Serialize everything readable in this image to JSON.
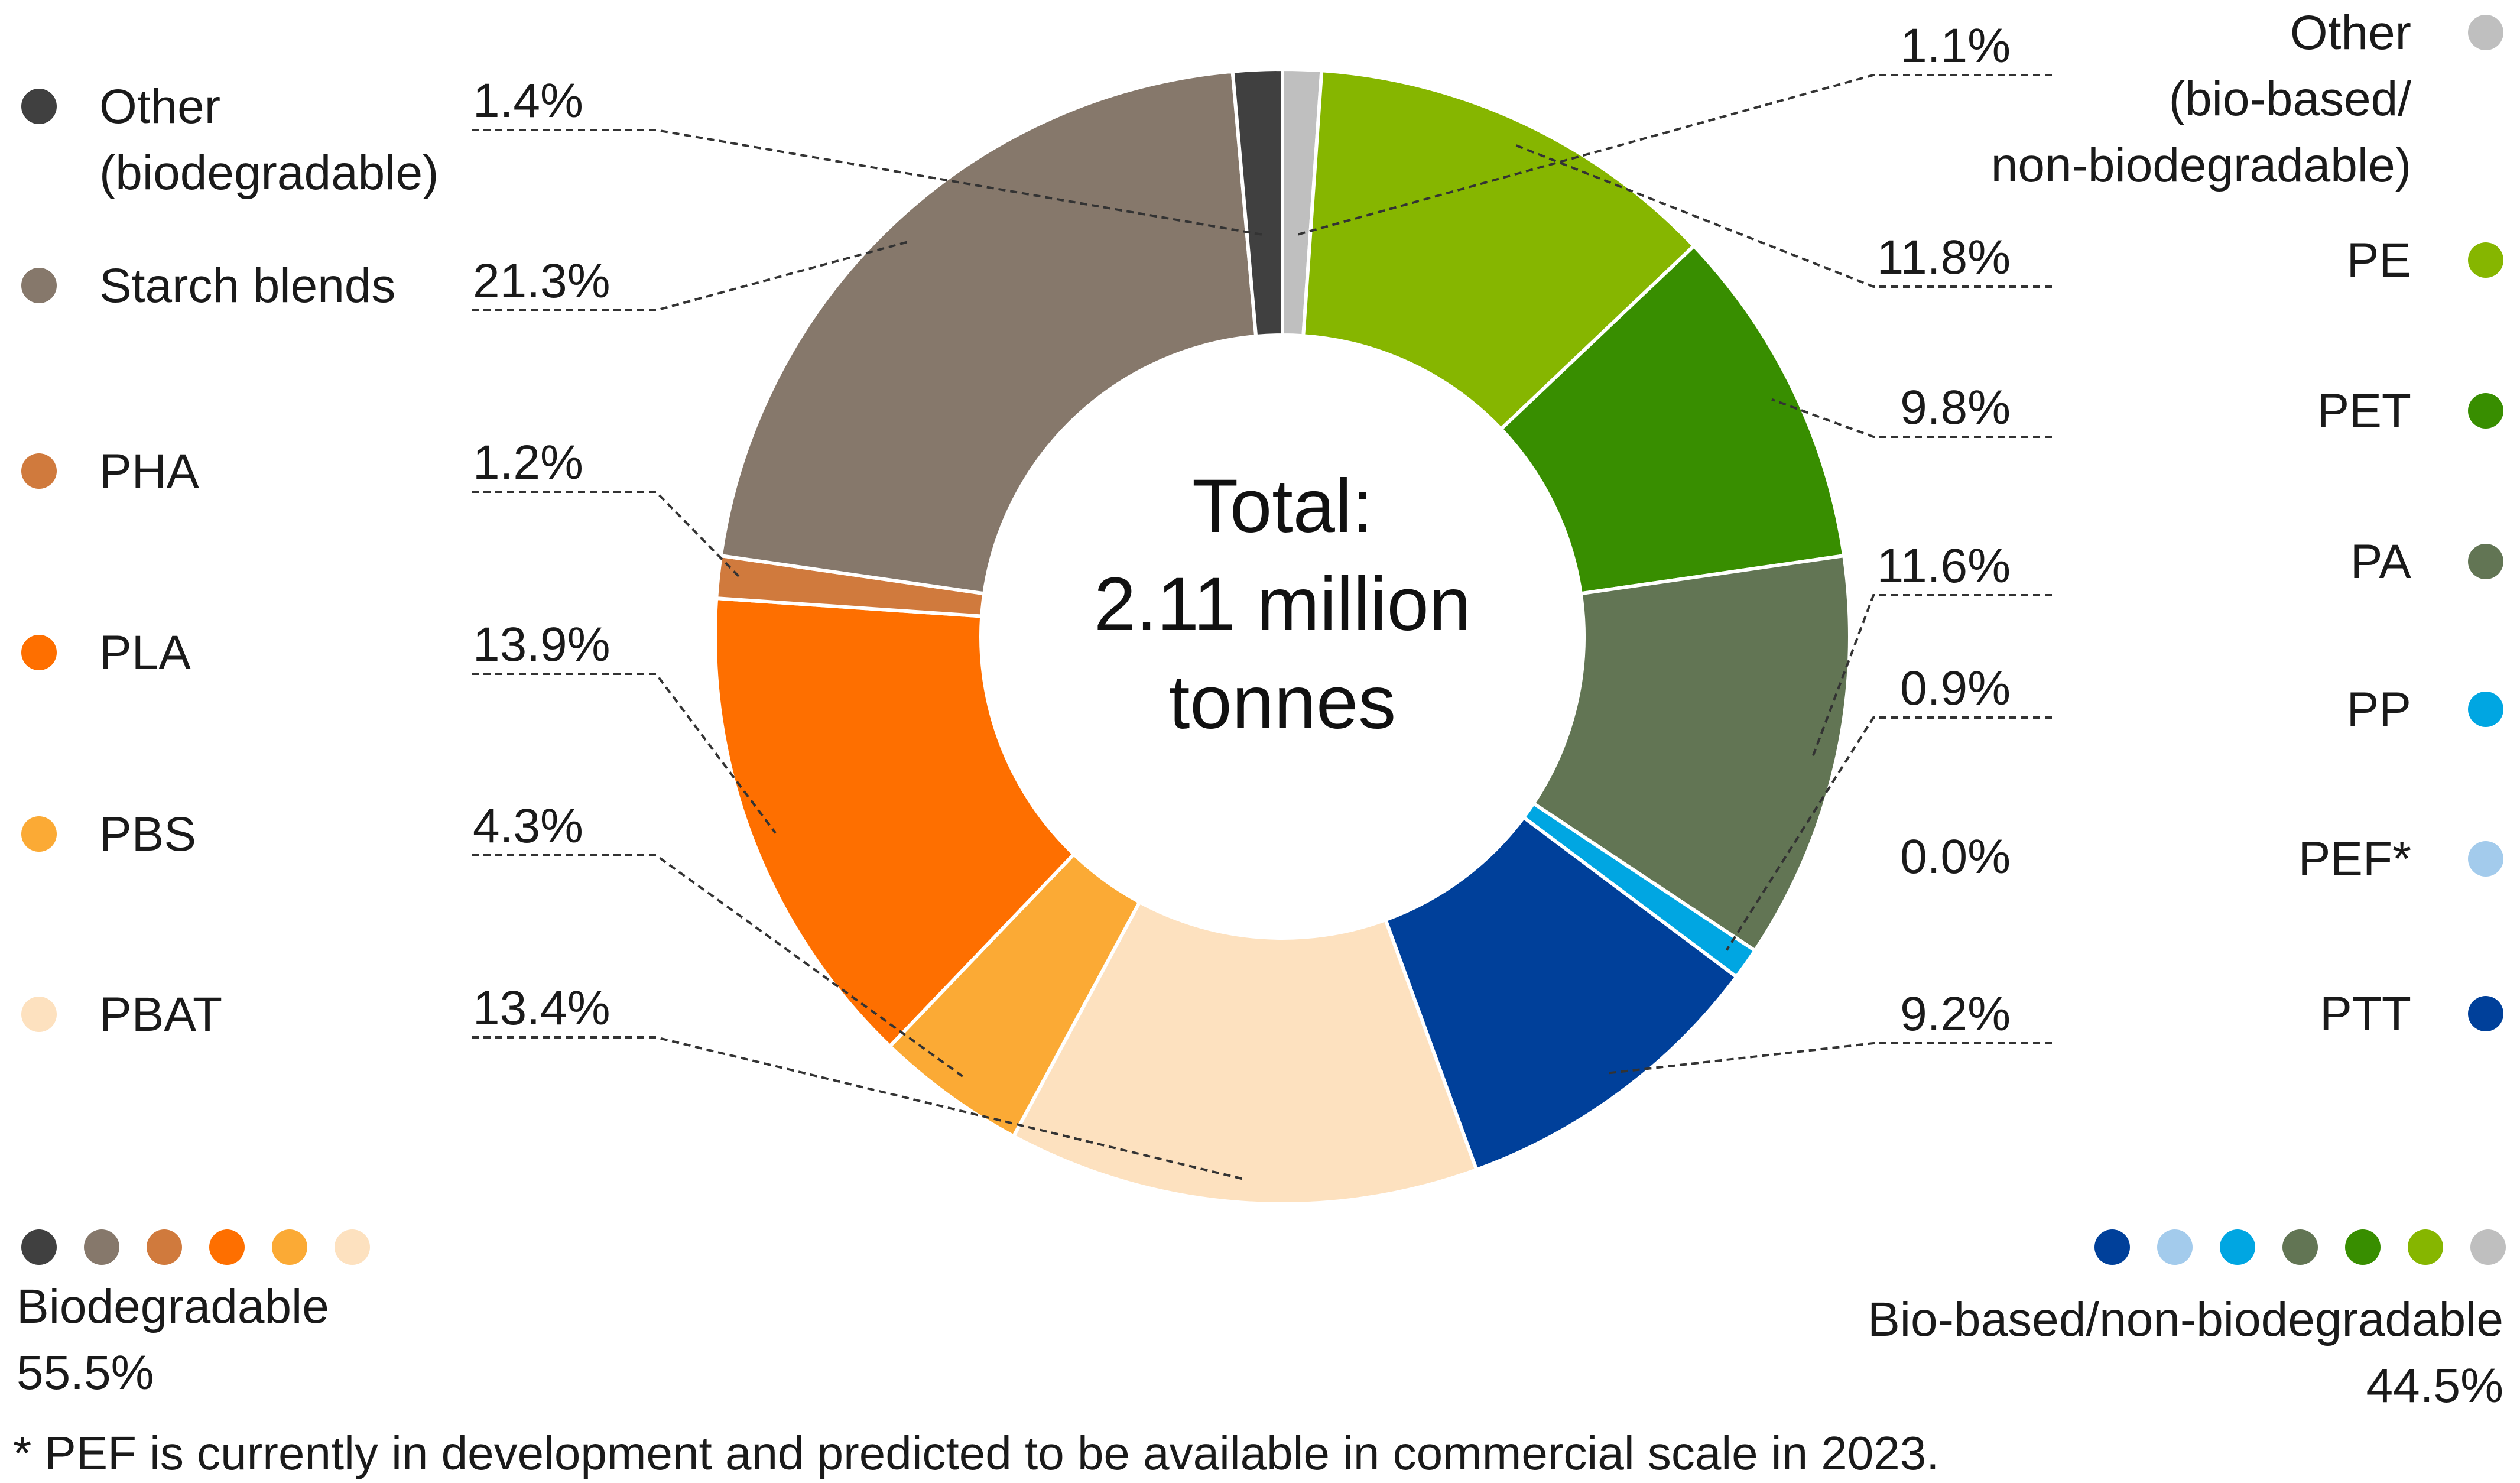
{
  "chart_data": {
    "type": "pie",
    "variant": "donut",
    "center_text": [
      "Total:",
      "2.11 million",
      "tonnes"
    ],
    "slices": [
      {
        "key": "other_bb",
        "label": "Other (bio-based/ non-biodegradable)",
        "label_lines": [
          "Other",
          "(bio-based/",
          "non-biodegradable)"
        ],
        "value": 1.1,
        "display": "1.1%",
        "color": "#bfbfbf",
        "group": "bio"
      },
      {
        "key": "pe",
        "label": "PE",
        "label_lines": [
          "PE"
        ],
        "value": 11.8,
        "display": "11.8%",
        "color": "#86b600",
        "group": "bio"
      },
      {
        "key": "pet",
        "label": "PET",
        "label_lines": [
          "PET"
        ],
        "value": 9.8,
        "display": "9.8%",
        "color": "#388e00",
        "group": "bio"
      },
      {
        "key": "pa",
        "label": "PA",
        "label_lines": [
          "PA"
        ],
        "value": 11.6,
        "display": "11.6%",
        "color": "#627554",
        "group": "bio"
      },
      {
        "key": "pp",
        "label": "PP",
        "label_lines": [
          "PP"
        ],
        "value": 0.9,
        "display": "0.9%",
        "color": "#00a6e2",
        "group": "bio"
      },
      {
        "key": "pef",
        "label": "PEF*",
        "label_lines": [
          "PEF*"
        ],
        "value": 0.0,
        "display": "0.0%",
        "color": "#a3cbec",
        "group": "bio"
      },
      {
        "key": "ptt",
        "label": "PTT",
        "label_lines": [
          "PTT"
        ],
        "value": 9.2,
        "display": "9.2%",
        "color": "#00409a",
        "group": "bio"
      },
      {
        "key": "pbat",
        "label": "PBAT",
        "label_lines": [
          "PBAT"
        ],
        "value": 13.4,
        "display": "13.4%",
        "color": "#fde1bf",
        "group": "biodeg"
      },
      {
        "key": "pbs",
        "label": "PBS",
        "label_lines": [
          "PBS"
        ],
        "value": 4.3,
        "display": "4.3%",
        "color": "#fbaa35",
        "group": "biodeg"
      },
      {
        "key": "pla",
        "label": "PLA",
        "label_lines": [
          "PLA"
        ],
        "value": 13.9,
        "display": "13.9%",
        "color": "#fe6f00",
        "group": "biodeg"
      },
      {
        "key": "pha",
        "label": "PHA",
        "label_lines": [
          "PHA"
        ],
        "value": 1.2,
        "display": "1.2%",
        "color": "#d07a3d",
        "group": "biodeg"
      },
      {
        "key": "starch",
        "label": "Starch blends",
        "label_lines": [
          "Starch blends"
        ],
        "value": 21.3,
        "display": "21.3%",
        "color": "#86786b",
        "group": "biodeg"
      },
      {
        "key": "other_bd",
        "label": "Other (biodegradable)",
        "label_lines": [
          "Other",
          "(biodegradable)"
        ],
        "value": 1.4,
        "display": "1.4%",
        "color": "#404040",
        "group": "biodeg"
      }
    ],
    "groups": {
      "biodegradable": {
        "label": "Biodegradable",
        "value": "55.5%",
        "dot_keys": [
          "other_bd",
          "starch",
          "pha",
          "pla",
          "pbs",
          "pbat"
        ]
      },
      "biobased": {
        "label": "Bio-based/non-biodegradable",
        "value": "44.5%",
        "dot_keys": [
          "ptt",
          "pef",
          "pp",
          "pa",
          "pet",
          "pe",
          "other_bb"
        ]
      }
    },
    "legend_left_order": [
      "other_bd",
      "starch",
      "pha",
      "pla",
      "pbs",
      "pbat"
    ],
    "legend_right_order": [
      "other_bb",
      "pe",
      "pet",
      "pa",
      "pp",
      "pef",
      "ptt"
    ],
    "footnote": "* PEF is currently in development and predicted to be available in commercial scale in 2023."
  }
}
